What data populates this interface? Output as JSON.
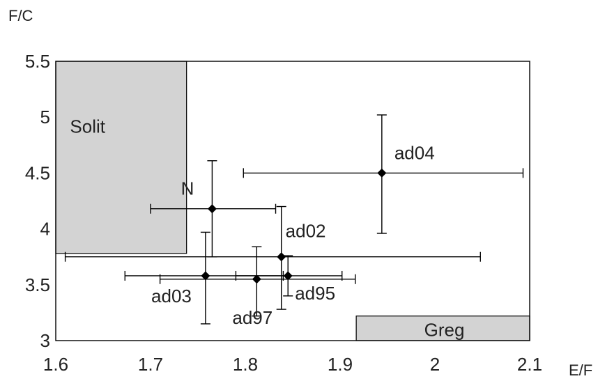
{
  "chart_data": {
    "type": "scatter",
    "title": "",
    "xlabel": "E/F",
    "ylabel": "F/C",
    "xlim": [
      1.6,
      2.1
    ],
    "ylim": [
      3,
      5.5
    ],
    "xticks": [
      "1.6",
      "1.7",
      "1.8",
      "1.9",
      "2",
      "2.1"
    ],
    "yticks": [
      "3",
      "3.5",
      "4",
      "4.5",
      "5",
      "5.5"
    ],
    "grid": false,
    "regions": [
      {
        "label": "Solit",
        "x": [
          1.6,
          1.738
        ],
        "y": [
          3.78,
          5.5
        ],
        "fill": "#d3d3d3"
      },
      {
        "label": "Greg",
        "x": [
          1.917,
          2.1
        ],
        "y": [
          3.0,
          3.22
        ],
        "fill": "#d3d3d3"
      }
    ],
    "points": [
      {
        "label": "N",
        "x": 1.765,
        "y": 4.18,
        "xerr": [
          1.7,
          1.832
        ],
        "yerr": [
          3.75,
          4.61
        ]
      },
      {
        "label": "ad04",
        "x": 1.944,
        "y": 4.5,
        "xerr": [
          1.798,
          2.093
        ],
        "yerr": [
          3.96,
          5.02
        ]
      },
      {
        "label": "ad02",
        "x": 1.838,
        "y": 3.75,
        "xerr": [
          1.61,
          2.048
        ],
        "yerr": [
          3.28,
          4.2
        ]
      },
      {
        "label": "ad03",
        "x": 1.758,
        "y": 3.58,
        "xerr": [
          1.673,
          1.84
        ],
        "yerr": [
          3.15,
          3.97
        ]
      },
      {
        "label": "ad97",
        "x": 1.812,
        "y": 3.55,
        "xerr": [
          1.71,
          1.916
        ],
        "yerr": [
          3.22,
          3.84
        ]
      },
      {
        "label": "ad95",
        "x": 1.845,
        "y": 3.58,
        "xerr": [
          1.79,
          1.902
        ],
        "yerr": [
          3.4,
          3.76
        ]
      }
    ],
    "colors": {
      "marker": "#000000",
      "region_fill": "#d3d3d3",
      "axis": "#000000"
    }
  }
}
